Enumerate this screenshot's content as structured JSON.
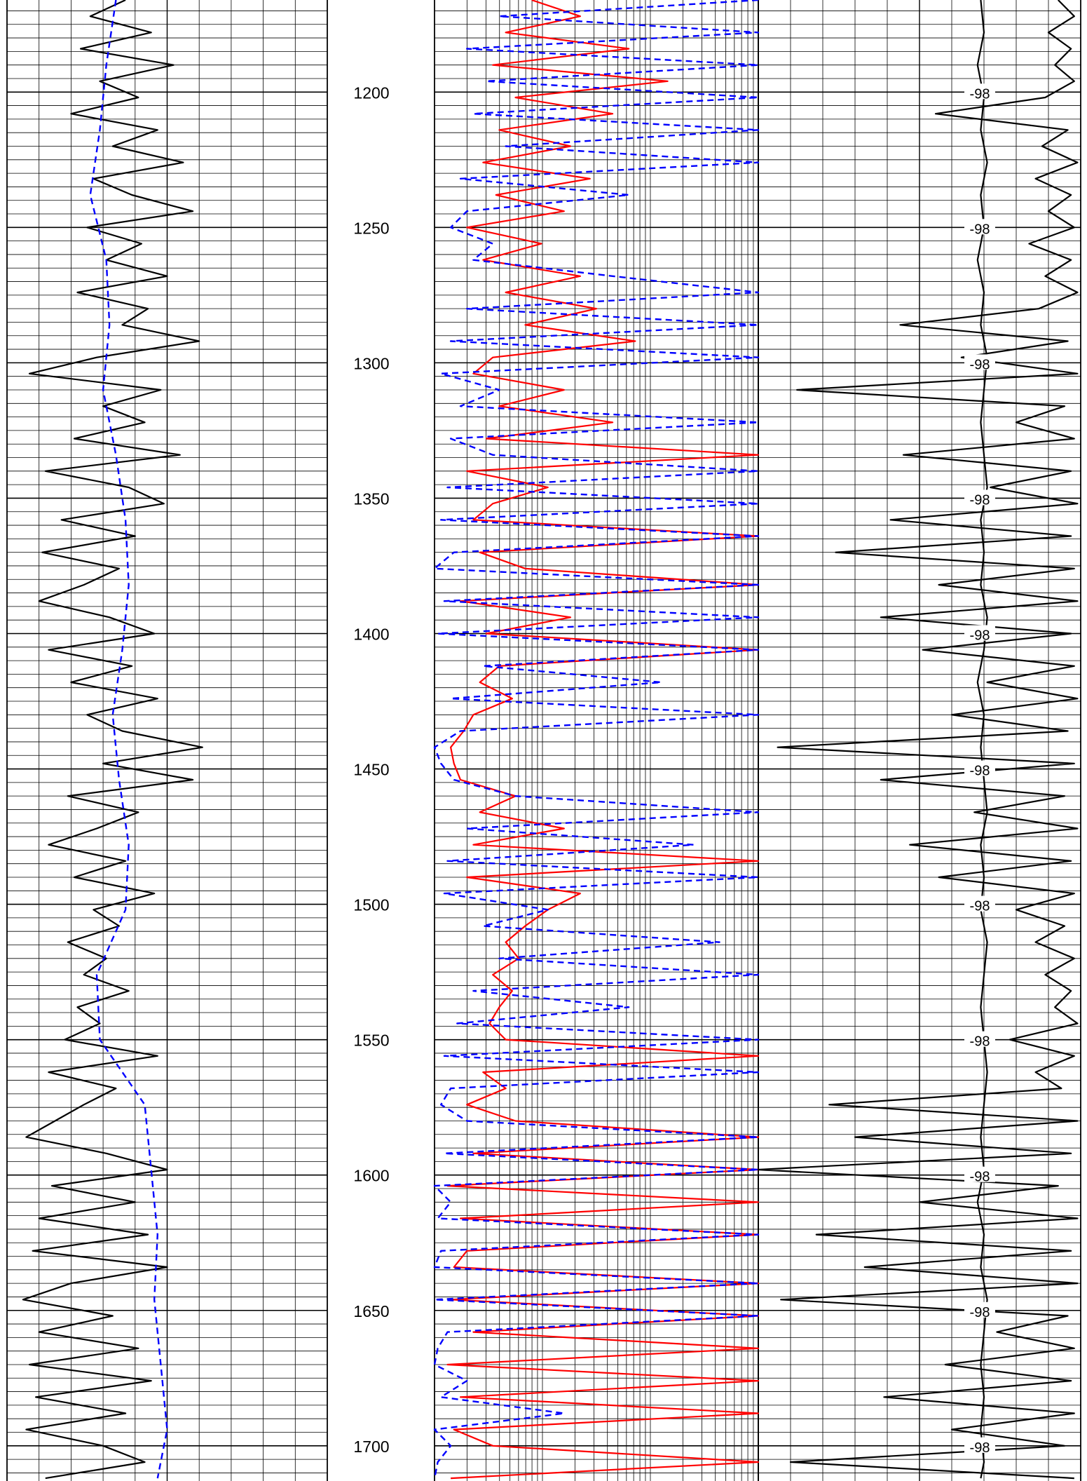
{
  "chart_data": {
    "type": "line",
    "title": "",
    "depth_axis": {
      "label": "",
      "range": [
        1166,
        1713
      ],
      "ticks": [
        1200,
        1250,
        1300,
        1350,
        1400,
        1450,
        1500,
        1550,
        1600,
        1650,
        1700
      ],
      "tick_labels": [
        "1200",
        "1250",
        "1300",
        "1350",
        "1400",
        "1450",
        "1500",
        "1550",
        "1600",
        "1650",
        "1700"
      ]
    },
    "tracks": [
      {
        "name": "",
        "grid": "linear",
        "series": [
          {
            "name": "",
            "color": "#000000",
            "style": "solid",
            "depth": [
              1166,
              1172,
              1178,
              1184,
              1190,
              1196,
              1202,
              1208,
              1214,
              1220,
              1226,
              1232,
              1238,
              1244,
              1250,
              1256,
              1262,
              1268,
              1274,
              1280,
              1286,
              1292,
              1298,
              1304,
              1310,
              1316,
              1322,
              1328,
              1334,
              1340,
              1346,
              1352,
              1358,
              1364,
              1370,
              1376,
              1382,
              1388,
              1394,
              1400,
              1406,
              1412,
              1418,
              1424,
              1430,
              1436,
              1442,
              1448,
              1454,
              1460,
              1466,
              1472,
              1478,
              1484,
              1490,
              1496,
              1502,
              1508,
              1514,
              1520,
              1526,
              1532,
              1538,
              1544,
              1550,
              1556,
              1562,
              1568,
              1574,
              1580,
              1586,
              1592,
              1598,
              1604,
              1610,
              1616,
              1622,
              1628,
              1634,
              1640,
              1646,
              1652,
              1658,
              1664,
              1670,
              1676,
              1682,
              1688,
              1694,
              1700,
              1706,
              1712
            ],
            "values": [
              0.37,
              0.26,
              0.45,
              0.23,
              0.52,
              0.29,
              0.41,
              0.2,
              0.47,
              0.33,
              0.55,
              0.27,
              0.39,
              0.58,
              0.25,
              0.42,
              0.31,
              0.5,
              0.22,
              0.44,
              0.36,
              0.6,
              0.28,
              0.07,
              0.48,
              0.3,
              0.43,
              0.21,
              0.54,
              0.12,
              0.38,
              0.49,
              0.17,
              0.4,
              0.11,
              0.35,
              0.24,
              0.1,
              0.32,
              0.46,
              0.13,
              0.39,
              0.2,
              0.47,
              0.25,
              0.36,
              0.61,
              0.3,
              0.58,
              0.19,
              0.41,
              0.28,
              0.13,
              0.37,
              0.21,
              0.46,
              0.27,
              0.35,
              0.19,
              0.31,
              0.24,
              0.38,
              0.22,
              0.29,
              0.18,
              0.47,
              0.13,
              0.34,
              0.24,
              0.15,
              0.06,
              0.31,
              0.5,
              0.14,
              0.4,
              0.1,
              0.44,
              0.08,
              0.5,
              0.2,
              0.05,
              0.33,
              0.1,
              0.41,
              0.07,
              0.45,
              0.09,
              0.37,
              0.06,
              0.3,
              0.43,
              0.12
            ]
          },
          {
            "name": "",
            "color": "#0000ff",
            "style": "dashed",
            "depth": [
              1166,
              1190,
              1214,
              1238,
              1262,
              1286,
              1310,
              1334,
              1358,
              1382,
              1406,
              1430,
              1454,
              1478,
              1502,
              1526,
              1550,
              1574,
              1598,
              1622,
              1646,
              1670,
              1694,
              1712
            ],
            "values": [
              0.34,
              0.31,
              0.29,
              0.26,
              0.31,
              0.32,
              0.3,
              0.34,
              0.37,
              0.38,
              0.36,
              0.33,
              0.35,
              0.38,
              0.37,
              0.28,
              0.29,
              0.43,
              0.45,
              0.47,
              0.46,
              0.48,
              0.5,
              0.47
            ]
          }
        ]
      },
      {
        "name": "",
        "grid": "log",
        "series": [
          {
            "name": "",
            "color": "#ff0000",
            "style": "solid",
            "depth": [
              1166,
              1172,
              1178,
              1184,
              1190,
              1196,
              1202,
              1208,
              1214,
              1220,
              1226,
              1232,
              1238,
              1244,
              1250,
              1256,
              1262,
              1268,
              1274,
              1280,
              1286,
              1292,
              1298,
              1304,
              1310,
              1316,
              1322,
              1328,
              1334,
              1340,
              1346,
              1352,
              1358,
              1364,
              1370,
              1376,
              1382,
              1388,
              1394,
              1400,
              1406,
              1412,
              1418,
              1424,
              1430,
              1436,
              1442,
              1448,
              1454,
              1460,
              1466,
              1472,
              1478,
              1484,
              1490,
              1496,
              1502,
              1508,
              1514,
              1520,
              1526,
              1532,
              1538,
              1544,
              1550,
              1556,
              1562,
              1568,
              1574,
              1580,
              1586,
              1592,
              1598,
              1604,
              1610,
              1616,
              1622,
              1628,
              1634,
              1640,
              1646,
              1652,
              1658,
              1664,
              1670,
              1676,
              1682,
              1688,
              1694,
              1700,
              1706,
              1712
            ],
            "values": [
              0.3,
              0.45,
              0.22,
              0.6,
              0.18,
              0.72,
              0.25,
              0.55,
              0.2,
              0.42,
              0.15,
              0.48,
              0.19,
              0.4,
              0.1,
              0.33,
              0.15,
              0.45,
              0.22,
              0.5,
              0.28,
              0.62,
              0.18,
              0.12,
              0.4,
              0.2,
              0.55,
              0.16,
              1.0,
              0.1,
              0.35,
              0.18,
              0.12,
              1.0,
              0.14,
              0.28,
              1.0,
              0.08,
              0.42,
              0.16,
              1.0,
              0.2,
              0.14,
              0.24,
              0.12,
              0.09,
              0.05,
              0.06,
              0.08,
              0.25,
              0.14,
              0.4,
              0.12,
              1.0,
              0.1,
              0.45,
              0.35,
              0.28,
              0.22,
              0.26,
              0.18,
              0.24,
              0.2,
              0.17,
              0.22,
              1.0,
              0.15,
              0.22,
              0.1,
              0.25,
              1.0,
              0.12,
              1.0,
              0.04,
              1.0,
              0.08,
              1.0,
              0.1,
              0.06,
              1.0,
              0.05,
              1.0,
              0.12,
              1.0,
              0.04,
              1.0,
              0.08,
              1.0,
              0.06,
              0.18,
              1.0,
              0.05
            ]
          },
          {
            "name": "",
            "color": "#0000ff",
            "style": "dashed",
            "depth": [
              1166,
              1172,
              1178,
              1184,
              1190,
              1196,
              1202,
              1208,
              1214,
              1220,
              1226,
              1232,
              1238,
              1244,
              1250,
              1256,
              1262,
              1268,
              1274,
              1280,
              1286,
              1292,
              1298,
              1304,
              1310,
              1316,
              1322,
              1328,
              1334,
              1340,
              1346,
              1352,
              1358,
              1364,
              1370,
              1376,
              1382,
              1388,
              1394,
              1400,
              1406,
              1412,
              1418,
              1424,
              1430,
              1436,
              1442,
              1448,
              1454,
              1460,
              1466,
              1472,
              1478,
              1484,
              1490,
              1496,
              1502,
              1508,
              1514,
              1520,
              1526,
              1532,
              1538,
              1544,
              1550,
              1556,
              1562,
              1568,
              1574,
              1580,
              1586,
              1592,
              1598,
              1604,
              1610,
              1616,
              1622,
              1628,
              1634,
              1640,
              1646,
              1652,
              1658,
              1664,
              1670,
              1676,
              1682,
              1688,
              1694,
              1700,
              1706,
              1712
            ],
            "values": [
              1.0,
              0.2,
              1.0,
              0.1,
              1.0,
              0.16,
              1.0,
              0.12,
              1.0,
              0.22,
              1.0,
              0.08,
              0.6,
              0.1,
              0.05,
              0.18,
              0.12,
              0.55,
              1.0,
              0.1,
              1.0,
              0.05,
              1.0,
              0.02,
              0.2,
              0.08,
              1.0,
              0.05,
              0.18,
              1.0,
              0.04,
              1.0,
              0.02,
              1.0,
              0.06,
              0.0,
              1.0,
              0.03,
              1.0,
              0.01,
              1.0,
              0.15,
              0.7,
              0.05,
              1.0,
              0.08,
              0.0,
              0.02,
              0.06,
              0.25,
              1.0,
              0.1,
              0.8,
              0.04,
              1.0,
              0.03,
              0.35,
              0.15,
              0.88,
              0.2,
              1.0,
              0.12,
              0.6,
              0.07,
              1.0,
              0.03,
              1.0,
              0.05,
              0.02,
              0.1,
              1.0,
              0.03,
              1.0,
              0.0,
              0.05,
              0.01,
              1.0,
              0.02,
              0.0,
              1.0,
              0.0,
              1.0,
              0.04,
              0.01,
              0.0,
              0.1,
              0.02,
              0.4,
              0.0,
              0.05,
              0.01,
              0.0
            ]
          }
        ]
      },
      {
        "name": "",
        "grid": "linear",
        "series": [
          {
            "name": "",
            "color": "#000000",
            "style": "solid",
            "depth": [
              1166,
              1172,
              1178,
              1184,
              1190,
              1196,
              1202,
              1208,
              1214,
              1220,
              1226,
              1232,
              1238,
              1244,
              1250,
              1256,
              1262,
              1268,
              1274,
              1280,
              1286,
              1292,
              1298,
              1304,
              1310,
              1316,
              1322,
              1328,
              1334,
              1340,
              1346,
              1352,
              1358,
              1364,
              1370,
              1376,
              1382,
              1388,
              1394,
              1400,
              1406,
              1412,
              1418,
              1424,
              1430,
              1436,
              1442,
              1448,
              1454,
              1460,
              1466,
              1472,
              1478,
              1484,
              1490,
              1496,
              1502,
              1508,
              1514,
              1520,
              1526,
              1532,
              1538,
              1544,
              1550,
              1556,
              1562,
              1568,
              1574,
              1580,
              1586,
              1592,
              1598,
              1604,
              1610,
              1616,
              1622,
              1628,
              1634,
              1640,
              1646,
              1652,
              1658,
              1664,
              1670,
              1676,
              1682,
              1688,
              1694,
              1700,
              1706,
              1712
            ],
            "values": [
              0.93,
              0.98,
              0.9,
              0.97,
              0.92,
              0.98,
              0.89,
              0.55,
              0.96,
              0.88,
              0.99,
              0.86,
              0.97,
              0.9,
              0.98,
              0.84,
              0.97,
              0.89,
              0.99,
              0.87,
              0.44,
              0.96,
              0.63,
              0.99,
              0.12,
              0.95,
              0.8,
              0.98,
              0.45,
              0.97,
              0.72,
              0.99,
              0.41,
              0.97,
              0.24,
              0.98,
              0.56,
              0.99,
              0.38,
              0.97,
              0.51,
              0.98,
              0.71,
              0.99,
              0.6,
              0.96,
              0.06,
              0.98,
              0.38,
              0.95,
              0.67,
              0.99,
              0.47,
              0.97,
              0.56,
              0.98,
              0.8,
              0.95,
              0.86,
              0.98,
              0.89,
              0.97,
              0.92,
              0.99,
              0.78,
              0.98,
              0.86,
              0.94,
              0.22,
              0.99,
              0.3,
              0.97,
              0.0,
              0.93,
              0.5,
              0.99,
              0.18,
              0.97,
              0.33,
              0.99,
              0.07,
              0.96,
              0.74,
              0.98,
              0.58,
              0.97,
              0.39,
              0.98,
              0.6,
              0.95,
              0.1,
              0.98
            ]
          },
          {
            "name": "",
            "color": "#000000",
            "style": "solid",
            "depth": [
              1166,
              1178,
              1190,
              1202,
              1214,
              1226,
              1238,
              1250,
              1262,
              1274,
              1286,
              1298,
              1310,
              1322,
              1334,
              1346,
              1358,
              1370,
              1382,
              1394,
              1406,
              1418,
              1430,
              1442,
              1454,
              1466,
              1478,
              1490,
              1502,
              1514,
              1526,
              1538,
              1550,
              1562,
              1574,
              1586,
              1598,
              1610,
              1622,
              1634,
              1646,
              1658,
              1670,
              1682,
              1694,
              1706,
              1712
            ],
            "values": [
              0.69,
              0.7,
              0.68,
              0.7,
              0.69,
              0.71,
              0.69,
              0.7,
              0.68,
              0.7,
              0.69,
              0.71,
              0.7,
              0.69,
              0.7,
              0.71,
              0.69,
              0.7,
              0.69,
              0.71,
              0.7,
              0.68,
              0.7,
              0.69,
              0.7,
              0.71,
              0.69,
              0.7,
              0.69,
              0.71,
              0.7,
              0.69,
              0.7,
              0.71,
              0.7,
              0.69,
              0.7,
              0.68,
              0.7,
              0.69,
              0.71,
              0.7,
              0.69,
              0.7,
              0.69,
              0.7,
              0.69
            ]
          }
        ],
        "curve_labels": [
          "-98",
          "-98",
          "-98",
          "-98",
          "-98",
          "-98",
          "-98",
          "-98",
          "-98",
          "-98",
          "-98"
        ]
      }
    ]
  }
}
